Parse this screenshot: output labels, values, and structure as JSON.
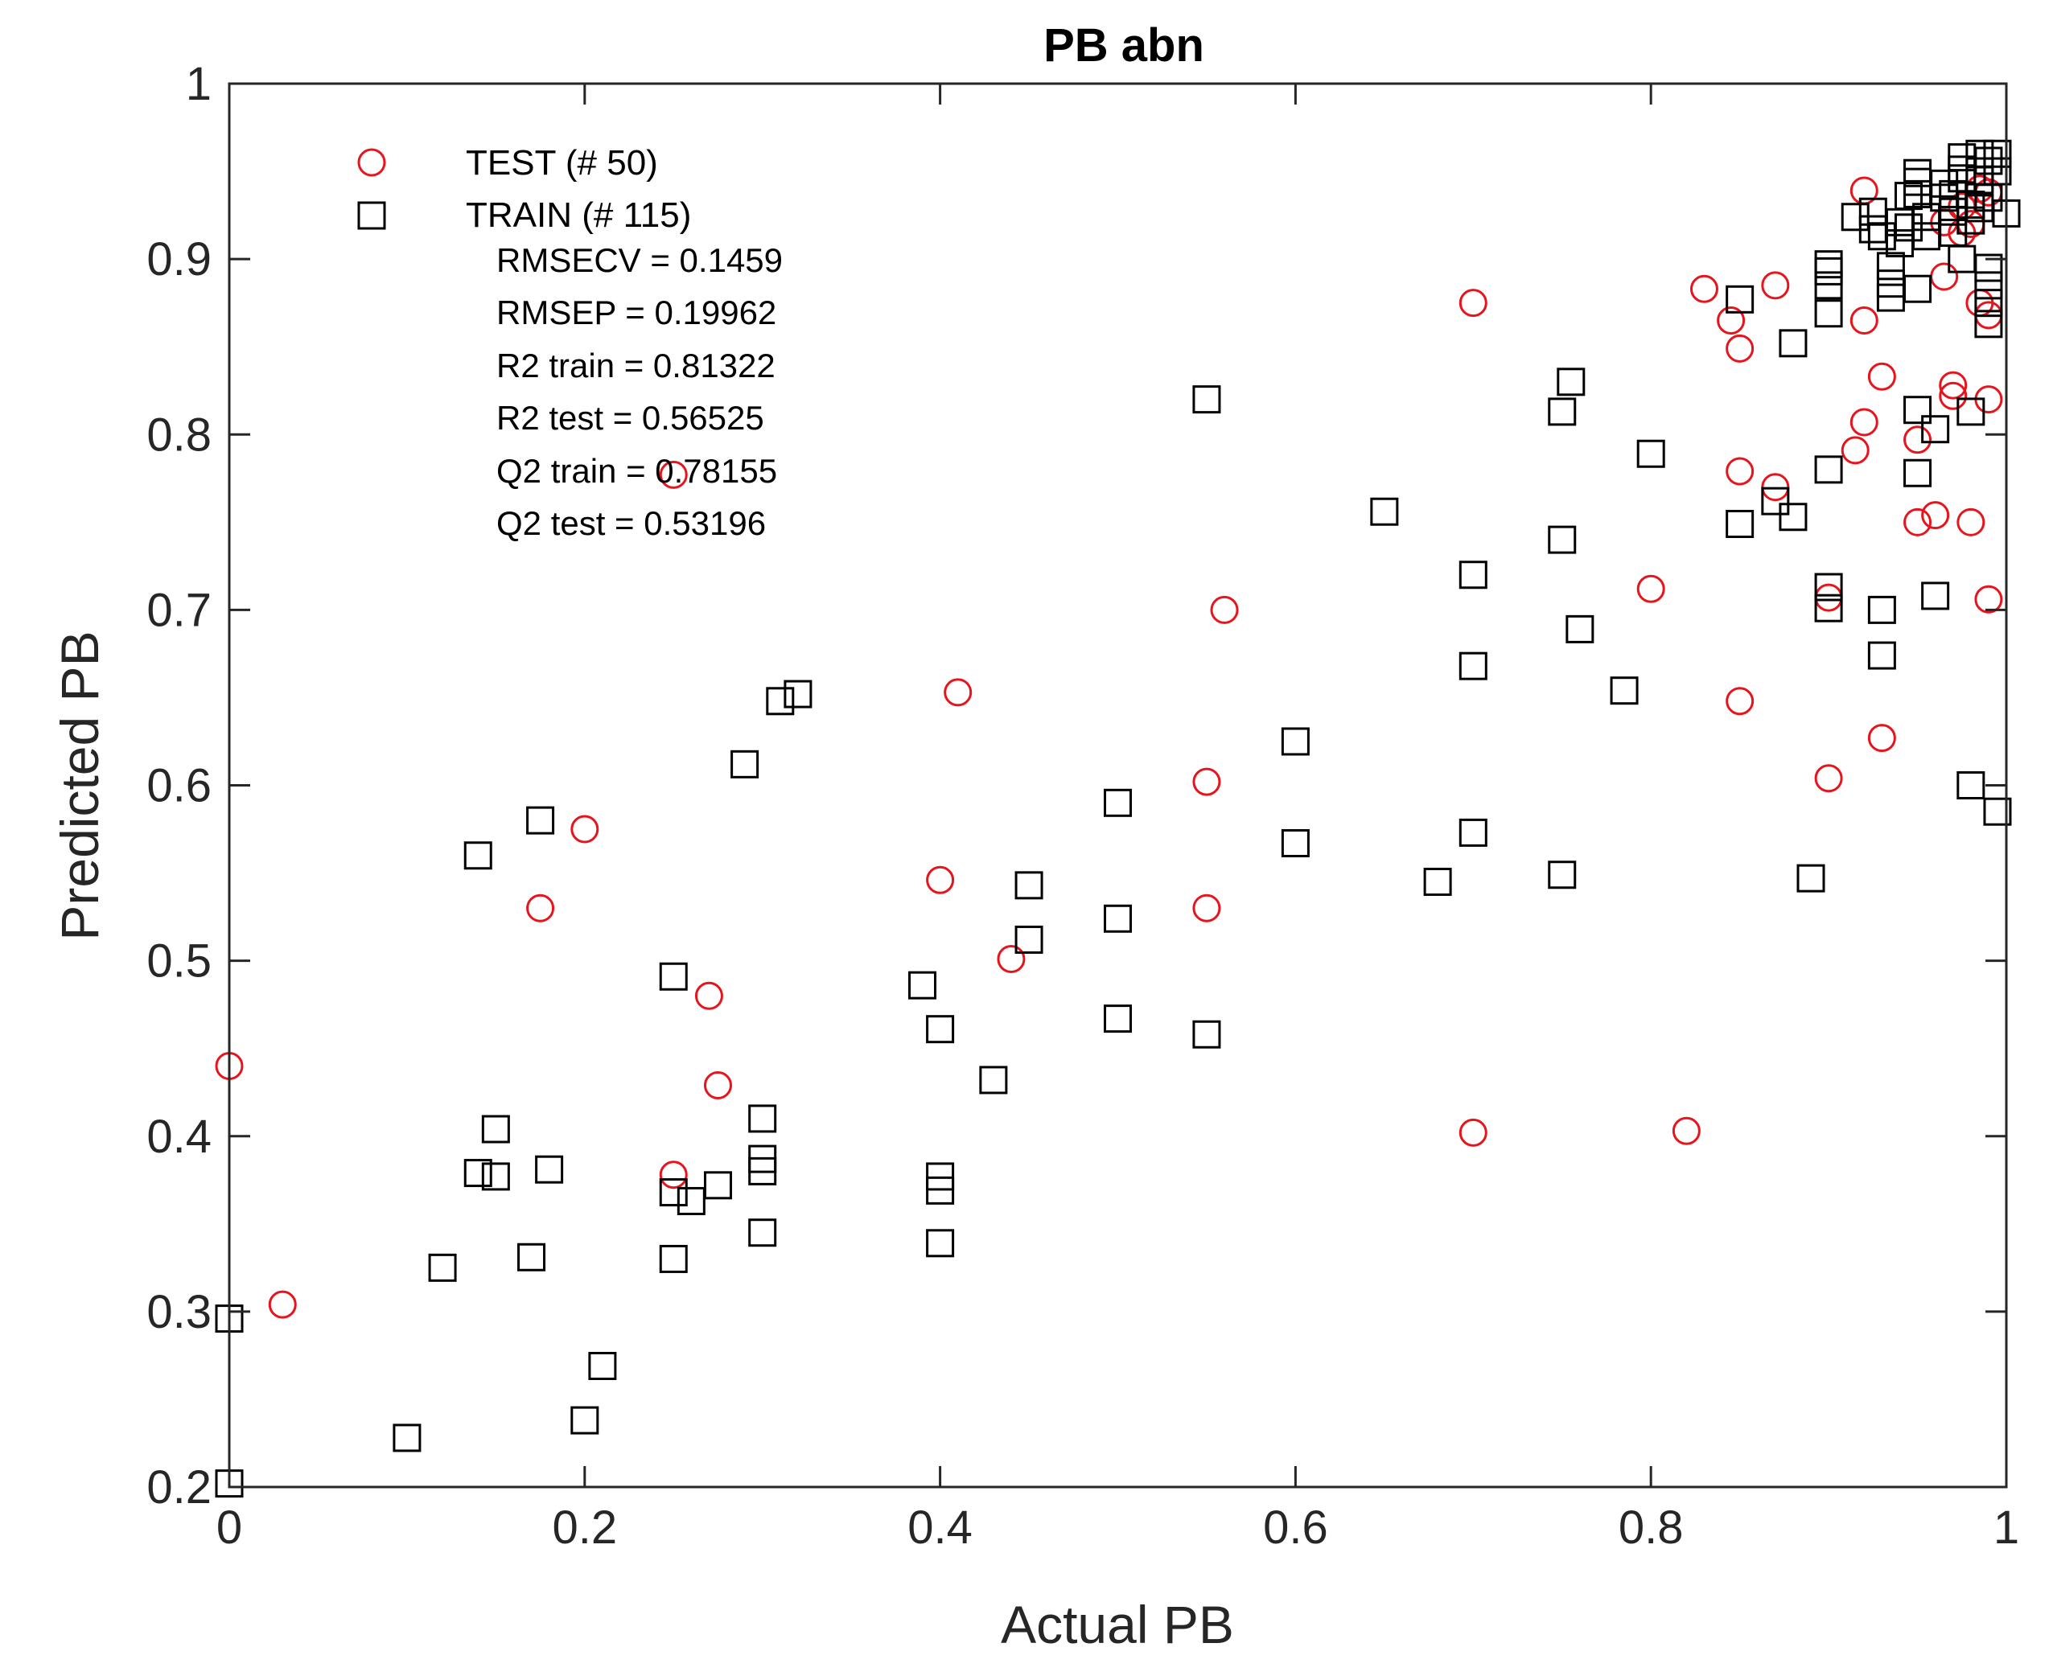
{
  "chart_data": {
    "type": "scatter",
    "title": "PB abn",
    "xlabel": "Actual PB",
    "ylabel": "Predicted PB",
    "xlim": [
      0,
      1
    ],
    "ylim": [
      0.2,
      1
    ],
    "xticks": [
      "0",
      "0.2",
      "0.4",
      "0.6",
      "0.8",
      "1"
    ],
    "yticks": [
      "0.2",
      "0.3",
      "0.4",
      "0.5",
      "0.6",
      "0.7",
      "0.8",
      "0.9",
      "1"
    ],
    "legend_position": "top-left",
    "series": [
      {
        "name": "TEST (# 50)",
        "marker": "circle",
        "color": "#e8141c",
        "points": [
          [
            0.0,
            0.44
          ],
          [
            0.03,
            0.304
          ],
          [
            0.175,
            0.53
          ],
          [
            0.2,
            0.575
          ],
          [
            0.25,
            0.777
          ],
          [
            0.25,
            0.378
          ],
          [
            0.27,
            0.48
          ],
          [
            0.275,
            0.429
          ],
          [
            0.4,
            0.546
          ],
          [
            0.41,
            0.653
          ],
          [
            0.44,
            0.501
          ],
          [
            0.55,
            0.602
          ],
          [
            0.55,
            0.53
          ],
          [
            0.56,
            0.7
          ],
          [
            0.7,
            0.875
          ],
          [
            0.7,
            0.402
          ],
          [
            0.8,
            0.712
          ],
          [
            0.82,
            0.403
          ],
          [
            0.83,
            0.883
          ],
          [
            0.845,
            0.865
          ],
          [
            0.85,
            0.849
          ],
          [
            0.85,
            0.779
          ],
          [
            0.85,
            0.648
          ],
          [
            0.87,
            0.885
          ],
          [
            0.87,
            0.77
          ],
          [
            0.9,
            0.707
          ],
          [
            0.9,
            0.604
          ],
          [
            0.915,
            0.791
          ],
          [
            0.92,
            0.939
          ],
          [
            0.92,
            0.865
          ],
          [
            0.92,
            0.807
          ],
          [
            0.93,
            0.833
          ],
          [
            0.93,
            0.627
          ],
          [
            0.95,
            0.797
          ],
          [
            0.95,
            0.75
          ],
          [
            0.96,
            0.754
          ],
          [
            0.965,
            0.921
          ],
          [
            0.965,
            0.89
          ],
          [
            0.97,
            0.828
          ],
          [
            0.97,
            0.822
          ],
          [
            0.975,
            0.915
          ],
          [
            0.98,
            0.75
          ],
          [
            0.985,
            0.875
          ],
          [
            0.985,
            0.94
          ],
          [
            0.99,
            0.82
          ],
          [
            0.99,
            0.868
          ],
          [
            0.99,
            0.706
          ],
          [
            0.99,
            0.938
          ],
          [
            0.975,
            0.93
          ],
          [
            0.98,
            0.92
          ]
        ]
      },
      {
        "name": "TRAIN (# 115)",
        "marker": "square",
        "color": "#000000",
        "points": [
          [
            0.0,
            0.296
          ],
          [
            0.0,
            0.202
          ],
          [
            0.1,
            0.228
          ],
          [
            0.12,
            0.325
          ],
          [
            0.14,
            0.56
          ],
          [
            0.14,
            0.379
          ],
          [
            0.15,
            0.404
          ],
          [
            0.15,
            0.377
          ],
          [
            0.17,
            0.331
          ],
          [
            0.175,
            0.58
          ],
          [
            0.18,
            0.381
          ],
          [
            0.2,
            0.238
          ],
          [
            0.21,
            0.269
          ],
          [
            0.25,
            0.491
          ],
          [
            0.25,
            0.368
          ],
          [
            0.25,
            0.33
          ],
          [
            0.26,
            0.363
          ],
          [
            0.275,
            0.372
          ],
          [
            0.29,
            0.612
          ],
          [
            0.3,
            0.41
          ],
          [
            0.3,
            0.387
          ],
          [
            0.3,
            0.38
          ],
          [
            0.3,
            0.345
          ],
          [
            0.31,
            0.648
          ],
          [
            0.32,
            0.652
          ],
          [
            0.39,
            0.486
          ],
          [
            0.4,
            0.461
          ],
          [
            0.4,
            0.377
          ],
          [
            0.4,
            0.369
          ],
          [
            0.4,
            0.339
          ],
          [
            0.43,
            0.432
          ],
          [
            0.45,
            0.543
          ],
          [
            0.45,
            0.512
          ],
          [
            0.5,
            0.59
          ],
          [
            0.5,
            0.524
          ],
          [
            0.5,
            0.467
          ],
          [
            0.55,
            0.82
          ],
          [
            0.55,
            0.458
          ],
          [
            0.6,
            0.625
          ],
          [
            0.6,
            0.567
          ],
          [
            0.65,
            0.756
          ],
          [
            0.68,
            0.545
          ],
          [
            0.7,
            0.72
          ],
          [
            0.7,
            0.668
          ],
          [
            0.7,
            0.573
          ],
          [
            0.75,
            0.813
          ],
          [
            0.75,
            0.74
          ],
          [
            0.75,
            0.549
          ],
          [
            0.755,
            0.83
          ],
          [
            0.76,
            0.689
          ],
          [
            0.785,
            0.654
          ],
          [
            0.8,
            0.789
          ],
          [
            0.85,
            0.877
          ],
          [
            0.85,
            0.749
          ],
          [
            0.87,
            0.762
          ],
          [
            0.88,
            0.852
          ],
          [
            0.88,
            0.753
          ],
          [
            0.89,
            0.547
          ],
          [
            0.9,
            0.897
          ],
          [
            0.9,
            0.893
          ],
          [
            0.9,
            0.885
          ],
          [
            0.9,
            0.869
          ],
          [
            0.9,
            0.78
          ],
          [
            0.9,
            0.713
          ],
          [
            0.9,
            0.701
          ],
          [
            0.915,
            0.924
          ],
          [
            0.925,
            0.927
          ],
          [
            0.925,
            0.917
          ],
          [
            0.93,
            0.913
          ],
          [
            0.93,
            0.7
          ],
          [
            0.93,
            0.674
          ],
          [
            0.935,
            0.896
          ],
          [
            0.935,
            0.886
          ],
          [
            0.935,
            0.878
          ],
          [
            0.94,
            0.921
          ],
          [
            0.94,
            0.909
          ],
          [
            0.945,
            0.936
          ],
          [
            0.945,
            0.918
          ],
          [
            0.95,
            0.949
          ],
          [
            0.95,
            0.944
          ],
          [
            0.95,
            0.937
          ],
          [
            0.95,
            0.883
          ],
          [
            0.95,
            0.814
          ],
          [
            0.95,
            0.778
          ],
          [
            0.955,
            0.924
          ],
          [
            0.955,
            0.913
          ],
          [
            0.96,
            0.803
          ],
          [
            0.96,
            0.708
          ],
          [
            0.965,
            0.943
          ],
          [
            0.97,
            0.937
          ],
          [
            0.97,
            0.927
          ],
          [
            0.975,
            0.958
          ],
          [
            0.975,
            0.951
          ],
          [
            0.975,
            0.9
          ],
          [
            0.98,
            0.931
          ],
          [
            0.98,
            0.922
          ],
          [
            0.98,
            0.813
          ],
          [
            0.98,
            0.6
          ],
          [
            0.985,
            0.96
          ],
          [
            0.985,
            0.945
          ],
          [
            0.985,
            0.929
          ],
          [
            0.99,
            0.956
          ],
          [
            0.99,
            0.935
          ],
          [
            0.99,
            0.895
          ],
          [
            0.99,
            0.885
          ],
          [
            0.99,
            0.875
          ],
          [
            0.99,
            0.863
          ],
          [
            0.995,
            0.96
          ],
          [
            0.995,
            0.95
          ],
          [
            0.995,
            0.585
          ],
          [
            1.0,
            0.926
          ],
          [
            0.975,
            0.946
          ],
          [
            0.985,
            0.95
          ],
          [
            0.97,
            0.915
          ],
          [
            0.965,
            0.935
          ]
        ]
      }
    ],
    "annotations": [
      "RMSECV = 0.1459",
      "RMSEP = 0.19962",
      "R2 train = 0.81322",
      "R2 test = 0.56525",
      "Q2 train = 0.78155",
      "Q2 test = 0.53196"
    ]
  }
}
